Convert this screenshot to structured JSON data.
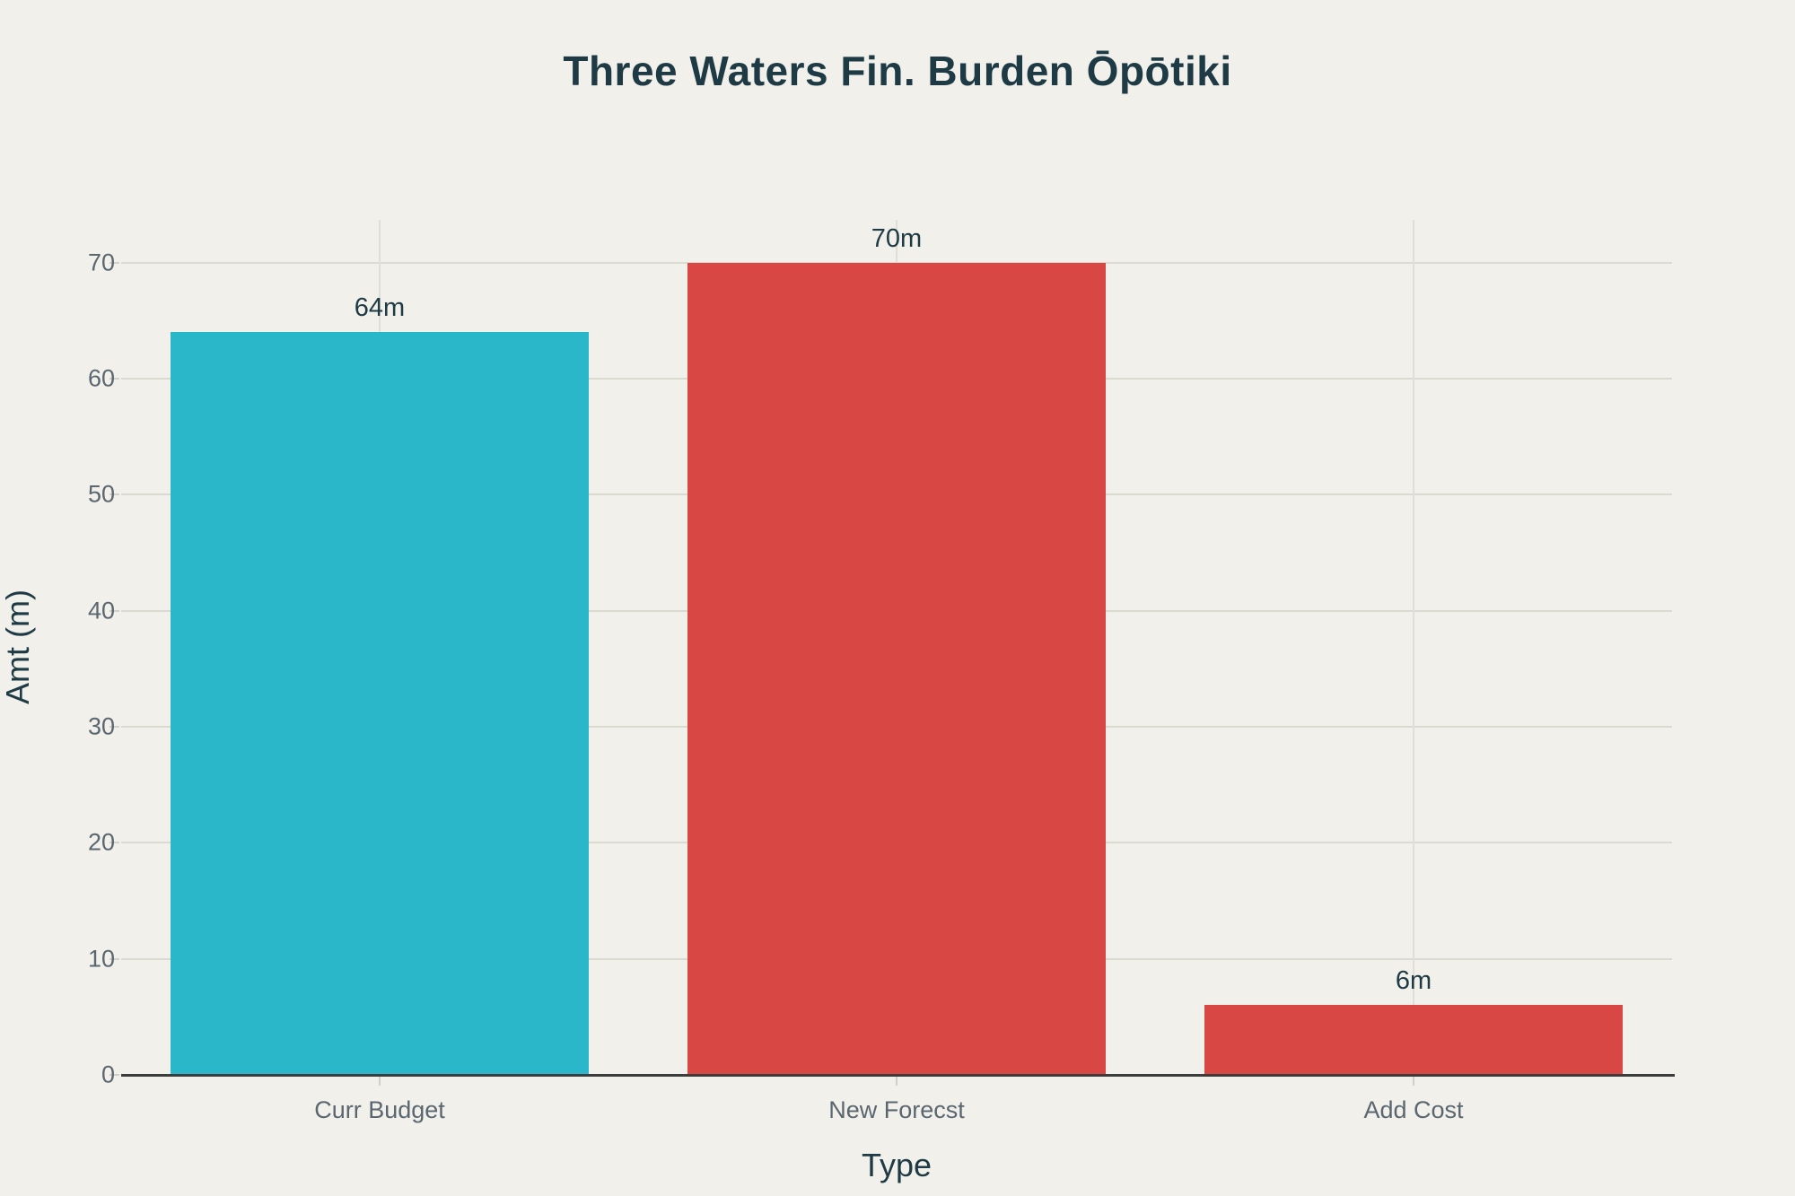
{
  "chart_data": {
    "type": "bar",
    "title": "Three Waters Fin. Burden Ōpōtiki",
    "xlabel": "Type",
    "ylabel": "Amt (m)",
    "categories": [
      "Curr Budget",
      "New Forecst",
      "Add Cost"
    ],
    "values": [
      64,
      70,
      6
    ],
    "bar_labels": [
      "64m",
      "70m",
      "6m"
    ],
    "bar_colors": [
      "#29b7c9",
      "#d84743",
      "#d84743"
    ],
    "ylim": [
      0,
      73.7
    ],
    "yticks": [
      0,
      10,
      20,
      30,
      40,
      50,
      60,
      70
    ],
    "grid": true,
    "legend": "none",
    "colors": {
      "background": "#f1f0ea",
      "title_text": "#1e3a45",
      "tick_text": "#5b6770",
      "h_gridline": "#dcd9d1",
      "v_gridline": "#e1ded8",
      "tick_mark": "#d2cfc8",
      "axis_line": "#3d3d3d"
    }
  }
}
